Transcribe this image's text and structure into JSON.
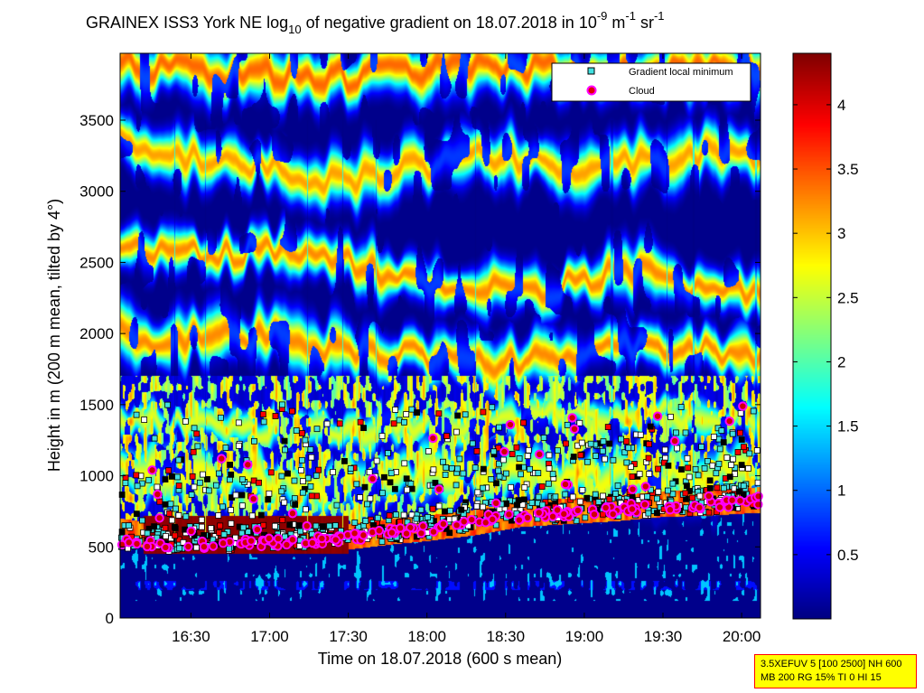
{
  "chart_data": {
    "type": "heatmap",
    "title": {
      "main": "GRAINEX ISS3 York NE log",
      "log_base": "10",
      "middle": " of negative gradient on 18.07.2018 in 10",
      "exp1": "-9",
      "unit_m": " m",
      "exp2": "-1",
      "unit_sr": " sr",
      "exp3": "-1"
    },
    "xlabel": "Time on 18.07.2018 (600 s mean)",
    "ylabel": "Height in m (200 m mean, tilted by 4°)",
    "x_ticks": [
      "16:30",
      "17:00",
      "17:30",
      "18:00",
      "18:30",
      "19:00",
      "19:30",
      "20:00"
    ],
    "x_tick_hours": [
      16.5,
      17.0,
      17.5,
      18.0,
      18.5,
      19.0,
      19.5,
      20.0
    ],
    "xlim_hours": [
      16.05,
      20.12
    ],
    "y_ticks": [
      "0",
      "500",
      "1000",
      "1500",
      "2000",
      "2500",
      "3000",
      "3500"
    ],
    "y_tick_values": [
      0,
      500,
      1000,
      1500,
      2000,
      2500,
      3000,
      3500
    ],
    "ylim": [
      0,
      3970
    ],
    "colorbar": {
      "ticks": [
        "0.5",
        "1",
        "1.5",
        "2",
        "2.5",
        "3",
        "3.5",
        "4"
      ],
      "tick_values": [
        0.5,
        1,
        1.5,
        2,
        2.5,
        3,
        3.5,
        4
      ],
      "range": [
        0,
        4.4
      ],
      "colormap": "jet"
    },
    "legend": {
      "placement": "top-right",
      "entries": [
        {
          "label": "Gradient local minimum",
          "marker": "square",
          "color": "#40e0e0"
        },
        {
          "label": "Cloud",
          "marker": "circle",
          "color": "#e00000",
          "edge": "#ff00ff"
        }
      ]
    },
    "layers": [
      {
        "name": "lower",
        "h": [
          [
            16.05,
            1050
          ],
          [
            16.3,
            1020
          ],
          [
            16.6,
            990
          ],
          [
            16.9,
            960
          ],
          [
            17.2,
            950
          ],
          [
            17.5,
            960
          ],
          [
            17.8,
            990
          ],
          [
            18.1,
            1010
          ],
          [
            18.4,
            1020
          ],
          [
            18.7,
            1000
          ],
          [
            19.0,
            980
          ],
          [
            19.3,
            1000
          ],
          [
            19.6,
            1020
          ],
          [
            19.9,
            1030
          ],
          [
            20.12,
            1050
          ]
        ],
        "amp": 2.7,
        "width": 140
      },
      {
        "name": "band-1300",
        "h": [
          [
            16.05,
            1400
          ],
          [
            16.5,
            1360
          ],
          [
            17.0,
            1320
          ],
          [
            17.5,
            1330
          ],
          [
            18.0,
            1350
          ],
          [
            18.5,
            1400
          ],
          [
            19.0,
            1420
          ],
          [
            19.5,
            1430
          ],
          [
            20.12,
            1420
          ]
        ],
        "amp": 2.6,
        "width": 90
      },
      {
        "name": "band-2000",
        "h": [
          [
            16.05,
            1980
          ],
          [
            16.3,
            1950
          ],
          [
            16.6,
            1990
          ],
          [
            16.9,
            1980
          ],
          [
            17.1,
            2000
          ],
          [
            17.4,
            1870
          ],
          [
            17.7,
            1860
          ],
          [
            18.0,
            1850
          ],
          [
            18.3,
            1780
          ],
          [
            18.6,
            1800
          ],
          [
            18.9,
            1860
          ],
          [
            19.2,
            1900
          ],
          [
            19.5,
            1920
          ],
          [
            19.8,
            1880
          ],
          [
            20.12,
            1860
          ]
        ],
        "amp": 3.25,
        "width": 120
      },
      {
        "name": "band-2600",
        "h": [
          [
            16.05,
            2600
          ],
          [
            16.3,
            2580
          ],
          [
            16.6,
            2560
          ],
          [
            16.9,
            2580
          ],
          [
            17.2,
            2580
          ],
          [
            17.5,
            2500
          ],
          [
            17.8,
            2420
          ],
          [
            18.1,
            2380
          ],
          [
            18.4,
            2350
          ],
          [
            18.7,
            2300
          ],
          [
            19.0,
            2380
          ],
          [
            19.3,
            2450
          ],
          [
            19.6,
            2350
          ],
          [
            19.9,
            2300
          ],
          [
            20.12,
            2320
          ]
        ],
        "amp": 3.25,
        "width": 110
      },
      {
        "name": "band-3300",
        "h": [
          [
            16.05,
            3330
          ],
          [
            16.3,
            3300
          ],
          [
            16.6,
            3200
          ],
          [
            16.9,
            3200
          ],
          [
            17.2,
            3100
          ],
          [
            17.5,
            3050
          ],
          [
            17.8,
            3150
          ],
          [
            18.1,
            3200
          ],
          [
            18.4,
            3250
          ],
          [
            18.7,
            3200
          ],
          [
            19.0,
            3150
          ],
          [
            19.3,
            3200
          ],
          [
            19.6,
            3250
          ],
          [
            19.9,
            3300
          ],
          [
            20.12,
            3250
          ]
        ],
        "amp": 3.15,
        "width": 120
      },
      {
        "name": "top",
        "h": [
          [
            16.05,
            3880
          ],
          [
            16.5,
            3850
          ],
          [
            17.0,
            3820
          ],
          [
            17.5,
            3800
          ],
          [
            18.0,
            3850
          ],
          [
            18.5,
            3870
          ],
          [
            19.0,
            3830
          ],
          [
            19.5,
            3850
          ],
          [
            20.12,
            3880
          ]
        ],
        "amp": 3.4,
        "width": 130
      }
    ],
    "boundary_layer_top": [
      [
        16.05,
        560
      ],
      [
        16.3,
        520
      ],
      [
        16.6,
        510
      ],
      [
        16.9,
        500
      ],
      [
        17.2,
        500
      ],
      [
        17.5,
        520
      ],
      [
        17.8,
        560
      ],
      [
        18.0,
        580
      ],
      [
        18.3,
        620
      ],
      [
        18.6,
        680
      ],
      [
        18.9,
        700
      ],
      [
        19.2,
        720
      ],
      [
        19.5,
        750
      ],
      [
        19.8,
        760
      ],
      [
        20.12,
        780
      ]
    ],
    "cloud_base": [
      [
        16.05,
        530
      ],
      [
        16.3,
        520
      ],
      [
        16.6,
        520
      ],
      [
        16.9,
        530
      ],
      [
        17.2,
        540
      ],
      [
        17.5,
        560
      ],
      [
        17.8,
        600
      ],
      [
        18.0,
        620
      ],
      [
        18.2,
        660
      ],
      [
        18.4,
        700
      ],
      [
        18.6,
        720
      ],
      [
        18.8,
        730
      ],
      [
        19.0,
        740
      ],
      [
        19.2,
        760
      ],
      [
        19.4,
        770
      ],
      [
        19.6,
        780
      ],
      [
        19.8,
        790
      ],
      [
        20.12,
        830
      ]
    ],
    "saturated_block": [
      16.2,
      17.5
    ],
    "saturated_block_heights": [
      450,
      720
    ]
  },
  "info_box": {
    "line1": "3.5XEFUV 5 [100 2500] NH 600",
    "line2": "MB 200 RG 15% TI 0 HI 15"
  }
}
